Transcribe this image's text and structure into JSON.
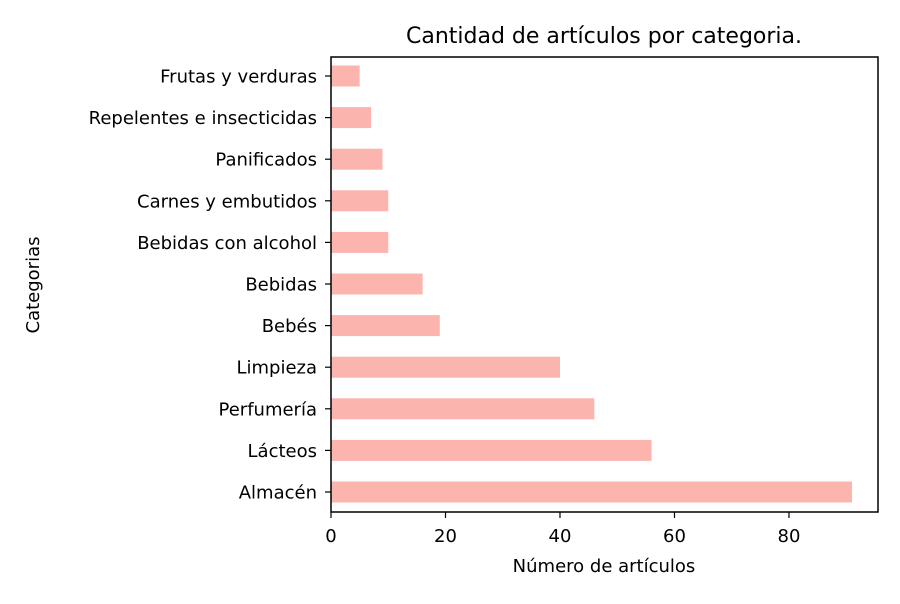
{
  "chart_data": {
    "type": "bar",
    "orientation": "horizontal",
    "title": "Cantidad de artículos por categoria.",
    "xlabel": "Número de artículos",
    "ylabel": "Categorias",
    "categories": [
      "Almacén",
      "Lácteos",
      "Perfumería",
      "Limpieza",
      "Bebés",
      "Bebidas",
      "Bebidas con alcohol",
      "Carnes y embutidos",
      "Panificados",
      "Repelentes e insecticidas",
      "Frutas y verduras"
    ],
    "values": [
      91,
      56,
      46,
      40,
      19,
      16,
      10,
      10,
      9,
      7,
      5
    ],
    "xlim": [
      0,
      95.55
    ],
    "xticks": [
      0,
      20,
      40,
      60,
      80
    ],
    "bar_color": "#fbb4ae",
    "grid": false,
    "legend": "none"
  }
}
